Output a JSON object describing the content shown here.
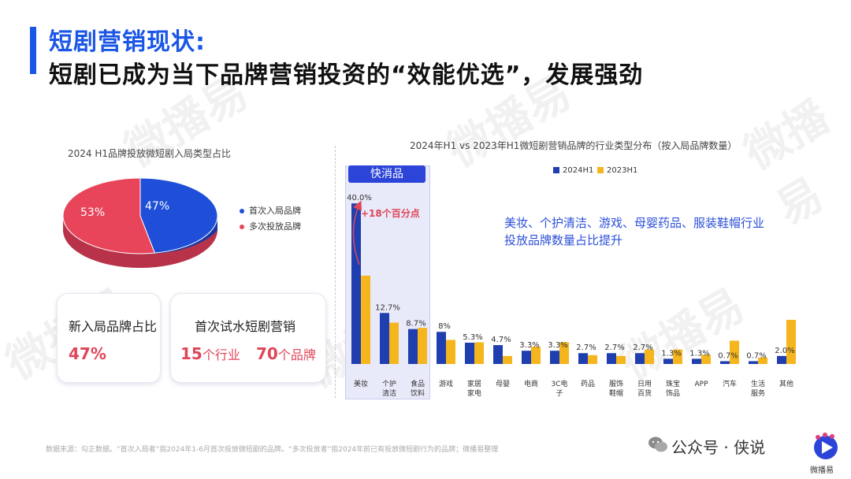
{
  "header": {
    "title_line1": "短剧营销现状:",
    "title_line2": "短剧已成为当下品牌营销投资的“效能优选”，发展强劲"
  },
  "watermark_text": "微播易",
  "pie": {
    "title": "2024 H1品牌投放微短剧入局类型占比",
    "slices": [
      {
        "name": "首次入局品牌",
        "value": 47,
        "label": "47%",
        "color": "#1f4fd8"
      },
      {
        "name": "多次投放品牌",
        "value": 53,
        "label": "53%",
        "color": "#e8455a"
      }
    ]
  },
  "cards": {
    "left": {
      "label": "新入局品牌占比",
      "value": "47%"
    },
    "right": {
      "label": "首次试水短剧营销",
      "v1": "15",
      "u1": "个行业",
      "v2": "70",
      "u2": "个品牌"
    }
  },
  "chart_data": {
    "type": "bar",
    "title": "2024年H1 vs 2023年H1微短剧营销品牌的行业类型分布（按入局品牌数量）",
    "categories": [
      "美妆",
      "个护清洁",
      "食品饮料",
      "游戏",
      "家居家电",
      "母婴",
      "电商",
      "3C电子",
      "药品",
      "服饰鞋帽",
      "日用百货",
      "珠宝饰品",
      "APP",
      "汽车",
      "生活服务",
      "其他"
    ],
    "category_lines": [
      [
        "美妆"
      ],
      [
        "个护",
        "清洁"
      ],
      [
        "食品",
        "饮料"
      ],
      [
        "游戏"
      ],
      [
        "家居",
        "家电"
      ],
      [
        "母婴"
      ],
      [
        "电商"
      ],
      [
        "3C电",
        "子"
      ],
      [
        "药品"
      ],
      [
        "服饰",
        "鞋帽"
      ],
      [
        "日用",
        "百货"
      ],
      [
        "珠宝",
        "饰品"
      ],
      [
        "APP"
      ],
      [
        "汽车"
      ],
      [
        "生活",
        "服务"
      ],
      [
        "其他"
      ]
    ],
    "series": [
      {
        "name": "2024H1",
        "color": "#1f3fb0",
        "values": [
          40.0,
          12.7,
          8.7,
          8,
          5.3,
          4.7,
          3.3,
          3.3,
          2.7,
          2.7,
          2.7,
          1.3,
          1.3,
          0.7,
          0.7,
          2.0
        ]
      },
      {
        "name": "2023H1",
        "color": "#f5b51d",
        "values": [
          22.0,
          10.3,
          9.0,
          6.0,
          5.4,
          2.0,
          4.3,
          5.4,
          2.2,
          2.0,
          3.6,
          3.6,
          2.3,
          5.8,
          1.6,
          11.0
        ]
      }
    ],
    "data_labels": [
      "40.0%",
      "12.7%",
      "8.7%",
      "8%",
      "5.3%",
      "4.7%",
      "3.3%",
      "3.3%",
      "2.7%",
      "2.7%",
      "2.7%",
      "1.3%",
      "1.3%",
      "0.7%",
      "0.7%",
      "2.0%"
    ],
    "ylim": [
      0,
      42
    ],
    "legend_position": "top",
    "highlight": {
      "label": "快消品",
      "categories": [
        "美妆",
        "个护清洁",
        "食品饮料"
      ]
    },
    "arrow_annotation": "+18个百分点",
    "annotation_text": "美妆、个护清洁、游戏、母婴药品、服装鞋帽行业投放品牌数量占比提升"
  },
  "annotation_lines": [
    "美妆、个护清洁、游戏、母婴药品、服装鞋帽行业",
    "投放品牌数量占比提升"
  ],
  "footer": {
    "footnote": "数据来源：勾正数据。“首次入局者”指2024年1-6月首次投放微短剧的品牌。“多次投放者”指2024年前已有投放微短剧行为的品牌；微播易整理",
    "brand": "公众号 · 侠说",
    "logo_text": "微播易"
  }
}
